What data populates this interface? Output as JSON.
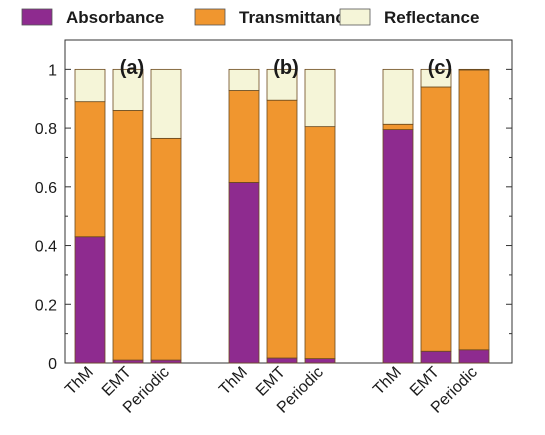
{
  "chart_data": {
    "type": "bar",
    "stacked": true,
    "title": "",
    "xlabel": "",
    "ylabel": "",
    "ylim": [
      0,
      1.1
    ],
    "yticks": [
      "0",
      "0.2",
      "0.4",
      "0.6",
      "0.8",
      "1"
    ],
    "legend_position": "top",
    "legend": [
      {
        "name": "Absorbance",
        "color": "#8e2b8f"
      },
      {
        "name": "Transmittance",
        "color": "#f0962f"
      },
      {
        "name": "Reflectance",
        "color": "#f5f5d8"
      }
    ],
    "groups": [
      {
        "label": "(a)",
        "categories": [
          "ThM",
          "EMT",
          "Periodic"
        ],
        "series": [
          {
            "name": "Absorbance",
            "values": [
              0.43,
              0.01,
              0.01
            ]
          },
          {
            "name": "Transmittance",
            "values": [
              0.46,
              0.85,
              0.755
            ]
          },
          {
            "name": "Reflectance",
            "values": [
              0.11,
              0.14,
              0.235
            ]
          }
        ]
      },
      {
        "label": "(b)",
        "categories": [
          "ThM",
          "EMT",
          "Periodic"
        ],
        "series": [
          {
            "name": "Absorbance",
            "values": [
              0.615,
              0.017,
              0.015
            ]
          },
          {
            "name": "Transmittance",
            "values": [
              0.313,
              0.878,
              0.79
            ]
          },
          {
            "name": "Reflectance",
            "values": [
              0.072,
              0.105,
              0.195
            ]
          }
        ]
      },
      {
        "label": "(c)",
        "categories": [
          "ThM",
          "EMT",
          "Periodic"
        ],
        "series": [
          {
            "name": "Absorbance",
            "values": [
              0.795,
              0.04,
              0.045
            ]
          },
          {
            "name": "Transmittance",
            "values": [
              0.018,
              0.9,
              0.953
            ]
          },
          {
            "name": "Reflectance",
            "values": [
              0.187,
              0.06,
              0.002
            ]
          }
        ]
      }
    ]
  }
}
